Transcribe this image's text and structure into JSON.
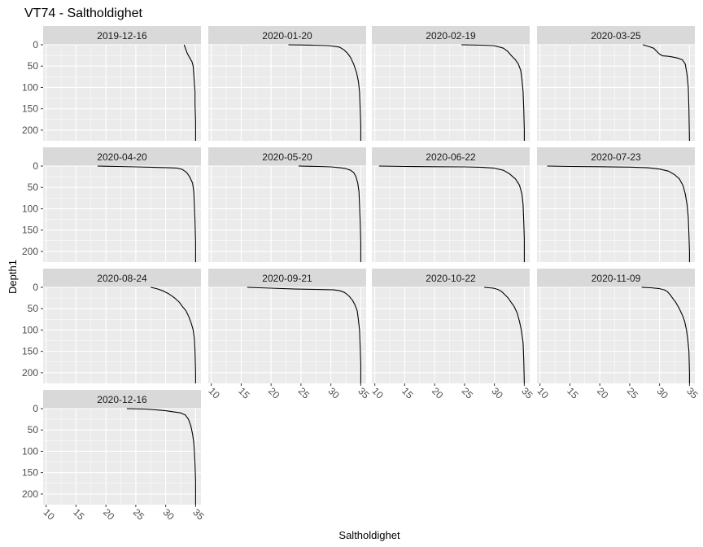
{
  "chart_data": {
    "type": "line",
    "title": "VT74  -  Saltholdighet",
    "xlabel": "Saltholdighet",
    "ylabel": "Depth1",
    "xlim": [
      9.5,
      35.9
    ],
    "ylim": [
      0,
      225
    ],
    "y_reversed": true,
    "x_ticks": [
      10,
      15,
      20,
      25,
      30,
      35
    ],
    "y_ticks": [
      0,
      50,
      100,
      150,
      200
    ],
    "grid": true,
    "ncol": 4,
    "colors": {
      "panel_bg": "#ebebeb",
      "strip_bg": "#d9d9d9",
      "grid": "#ffffff",
      "line": "#000000"
    },
    "panels": [
      {
        "label": "2019-12-16",
        "points": [
          [
            33.1,
            0
          ],
          [
            33.2,
            5
          ],
          [
            33.4,
            12
          ],
          [
            33.6,
            20
          ],
          [
            34.0,
            30
          ],
          [
            34.4,
            40
          ],
          [
            34.6,
            50
          ],
          [
            34.7,
            70
          ],
          [
            34.8,
            90
          ],
          [
            34.9,
            110
          ],
          [
            34.9,
            140
          ],
          [
            35.0,
            180
          ],
          [
            35.0,
            225
          ]
        ]
      },
      {
        "label": "2020-01-20",
        "points": [
          [
            22.9,
            0
          ],
          [
            27.0,
            1
          ],
          [
            29.5,
            2
          ],
          [
            30.8,
            4
          ],
          [
            31.5,
            6
          ],
          [
            32.2,
            12
          ],
          [
            32.8,
            20
          ],
          [
            33.3,
            30
          ],
          [
            33.8,
            45
          ],
          [
            34.3,
            65
          ],
          [
            34.6,
            85
          ],
          [
            34.8,
            110
          ],
          [
            34.9,
            150
          ],
          [
            35.0,
            190
          ],
          [
            35.0,
            225
          ]
        ]
      },
      {
        "label": "2020-02-19",
        "points": [
          [
            24.5,
            0
          ],
          [
            28.0,
            1
          ],
          [
            29.8,
            2
          ],
          [
            30.5,
            4
          ],
          [
            31.5,
            8
          ],
          [
            32.2,
            15
          ],
          [
            32.8,
            25
          ],
          [
            33.5,
            35
          ],
          [
            34.0,
            45
          ],
          [
            34.4,
            60
          ],
          [
            34.6,
            80
          ],
          [
            34.8,
            110
          ],
          [
            34.9,
            150
          ],
          [
            35.0,
            200
          ],
          [
            35.0,
            225
          ]
        ]
      },
      {
        "label": "2020-03-25",
        "points": [
          [
            27.2,
            0
          ],
          [
            28.2,
            4
          ],
          [
            29.0,
            8
          ],
          [
            29.5,
            15
          ],
          [
            30.0,
            22
          ],
          [
            30.5,
            26
          ],
          [
            31.5,
            27
          ],
          [
            32.3,
            29
          ],
          [
            33.0,
            31
          ],
          [
            33.8,
            35
          ],
          [
            34.3,
            45
          ],
          [
            34.6,
            70
          ],
          [
            34.8,
            100
          ],
          [
            34.9,
            150
          ],
          [
            35.0,
            225
          ]
        ]
      },
      {
        "label": "2020-04-20",
        "points": [
          [
            18.6,
            0
          ],
          [
            22.0,
            1
          ],
          [
            25.0,
            2
          ],
          [
            28.0,
            3
          ],
          [
            30.5,
            4
          ],
          [
            32.0,
            5
          ],
          [
            32.8,
            8
          ],
          [
            33.5,
            15
          ],
          [
            34.0,
            25
          ],
          [
            34.5,
            40
          ],
          [
            34.7,
            60
          ],
          [
            34.8,
            90
          ],
          [
            34.9,
            130
          ],
          [
            35.0,
            180
          ],
          [
            35.0,
            225
          ]
        ]
      },
      {
        "label": "2020-05-20",
        "points": [
          [
            24.6,
            0
          ],
          [
            28.0,
            1
          ],
          [
            30.0,
            2
          ],
          [
            31.5,
            4
          ],
          [
            32.5,
            6
          ],
          [
            33.3,
            10
          ],
          [
            33.8,
            15
          ],
          [
            34.2,
            25
          ],
          [
            34.5,
            40
          ],
          [
            34.7,
            60
          ],
          [
            34.8,
            90
          ],
          [
            34.9,
            130
          ],
          [
            35.0,
            180
          ],
          [
            35.0,
            225
          ]
        ]
      },
      {
        "label": "2020-06-22",
        "points": [
          [
            10.7,
            0
          ],
          [
            15.0,
            1
          ],
          [
            20.0,
            1.5
          ],
          [
            25.0,
            2
          ],
          [
            28.0,
            3
          ],
          [
            30.0,
            5
          ],
          [
            31.5,
            10
          ],
          [
            32.5,
            18
          ],
          [
            33.5,
            30
          ],
          [
            34.2,
            45
          ],
          [
            34.6,
            65
          ],
          [
            34.8,
            90
          ],
          [
            34.9,
            130
          ],
          [
            35.0,
            170
          ],
          [
            35.0,
            225
          ]
        ]
      },
      {
        "label": "2020-07-23",
        "points": [
          [
            11.2,
            0
          ],
          [
            15.0,
            1
          ],
          [
            20.0,
            1.5
          ],
          [
            25.0,
            2.5
          ],
          [
            28.0,
            4
          ],
          [
            30.0,
            7
          ],
          [
            31.5,
            12
          ],
          [
            32.5,
            20
          ],
          [
            33.3,
            30
          ],
          [
            33.9,
            45
          ],
          [
            34.3,
            65
          ],
          [
            34.6,
            90
          ],
          [
            34.8,
            120
          ],
          [
            34.9,
            160
          ],
          [
            35.0,
            200
          ],
          [
            35.0,
            225
          ]
        ]
      },
      {
        "label": "2020-08-24",
        "points": [
          [
            27.5,
            0
          ],
          [
            28.5,
            3
          ],
          [
            29.5,
            8
          ],
          [
            30.5,
            15
          ],
          [
            31.5,
            25
          ],
          [
            32.3,
            35
          ],
          [
            32.8,
            45
          ],
          [
            33.4,
            55
          ],
          [
            33.9,
            70
          ],
          [
            34.3,
            85
          ],
          [
            34.6,
            100
          ],
          [
            34.8,
            120
          ],
          [
            34.9,
            150
          ],
          [
            35.0,
            200
          ],
          [
            35.0,
            225
          ]
        ]
      },
      {
        "label": "2020-09-21",
        "points": [
          [
            16.0,
            0
          ],
          [
            20.0,
            2
          ],
          [
            24.0,
            4
          ],
          [
            28.0,
            5
          ],
          [
            30.5,
            6
          ],
          [
            31.5,
            8
          ],
          [
            32.3,
            12
          ],
          [
            33.0,
            20
          ],
          [
            33.6,
            30
          ],
          [
            34.0,
            40
          ],
          [
            34.4,
            55
          ],
          [
            34.6,
            75
          ],
          [
            34.8,
            100
          ],
          [
            34.9,
            140
          ],
          [
            35.0,
            180
          ],
          [
            35.0,
            225
          ]
        ]
      },
      {
        "label": "2020-10-22",
        "points": [
          [
            28.3,
            0
          ],
          [
            29.8,
            2
          ],
          [
            30.6,
            5
          ],
          [
            31.2,
            10
          ],
          [
            31.8,
            18
          ],
          [
            32.3,
            25
          ],
          [
            32.8,
            35
          ],
          [
            33.3,
            45
          ],
          [
            33.8,
            60
          ],
          [
            34.2,
            80
          ],
          [
            34.5,
            100
          ],
          [
            34.8,
            130
          ],
          [
            34.9,
            170
          ],
          [
            35.0,
            225
          ]
        ]
      },
      {
        "label": "2020-11-09",
        "points": [
          [
            27.0,
            0
          ],
          [
            28.5,
            1
          ],
          [
            30.0,
            3
          ],
          [
            30.8,
            6
          ],
          [
            31.3,
            10
          ],
          [
            31.8,
            18
          ],
          [
            32.2,
            26
          ],
          [
            32.7,
            35
          ],
          [
            33.3,
            50
          ],
          [
            33.8,
            65
          ],
          [
            34.2,
            80
          ],
          [
            34.5,
            100
          ],
          [
            34.7,
            120
          ],
          [
            34.9,
            150
          ],
          [
            35.0,
            200
          ],
          [
            35.0,
            225
          ]
        ]
      },
      {
        "label": "2020-12-16",
        "points": [
          [
            23.5,
            0
          ],
          [
            26.5,
            1
          ],
          [
            28.5,
            3
          ],
          [
            30.0,
            5
          ],
          [
            31.5,
            8
          ],
          [
            32.5,
            10
          ],
          [
            33.3,
            15
          ],
          [
            33.8,
            25
          ],
          [
            34.2,
            40
          ],
          [
            34.5,
            60
          ],
          [
            34.7,
            80
          ],
          [
            34.8,
            100
          ],
          [
            34.9,
            130
          ],
          [
            35.0,
            170
          ],
          [
            35.0,
            225
          ]
        ]
      }
    ]
  }
}
